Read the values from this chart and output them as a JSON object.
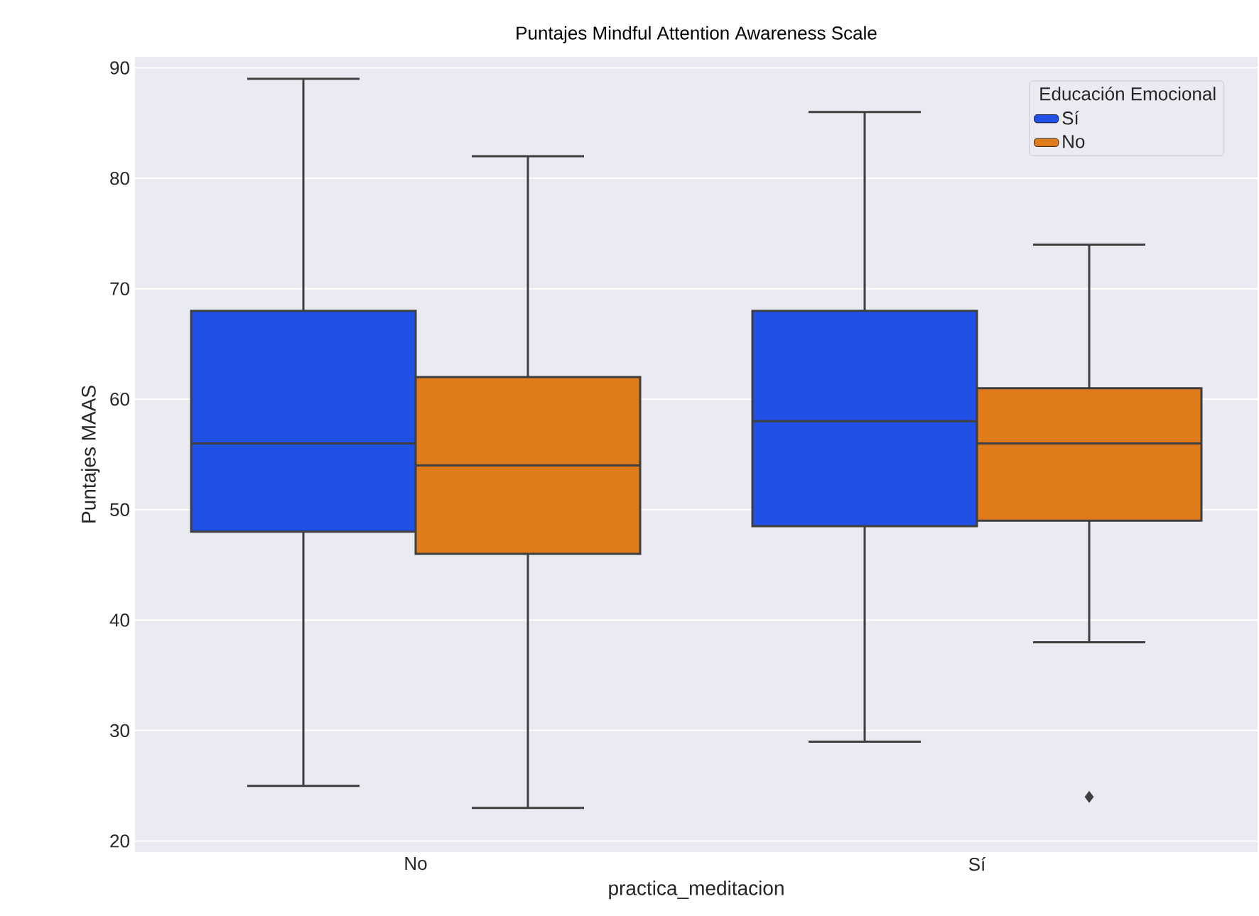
{
  "chart_data": {
    "type": "box",
    "title": "Puntajes Mindful Attention Awareness Scale",
    "xlabel": "practica_meditacion",
    "ylabel": "Puntajes MAAS",
    "legend_title": "Educación Emocional",
    "categories": [
      "No",
      "Sí"
    ],
    "series": [
      {
        "name": "Sí",
        "color": "#2050e6",
        "boxes": [
          {
            "low": 25,
            "q1": 48,
            "median": 56,
            "q3": 68,
            "high": 89
          },
          {
            "low": 29,
            "q1": 48.5,
            "median": 58,
            "q3": 68,
            "high": 86
          }
        ]
      },
      {
        "name": "No",
        "color": "#e07b1c",
        "boxes": [
          {
            "low": 23,
            "q1": 46,
            "median": 54,
            "q3": 62,
            "high": 82
          },
          {
            "low": 38,
            "q1": 49,
            "median": 56,
            "q3": 61,
            "high": 74,
            "outliers": [
              24
            ]
          }
        ]
      }
    ],
    "ylim": [
      19,
      91
    ],
    "yticks": [
      20,
      30,
      40,
      50,
      60,
      70,
      80,
      90
    ],
    "grid": "y",
    "legend": "top right"
  }
}
